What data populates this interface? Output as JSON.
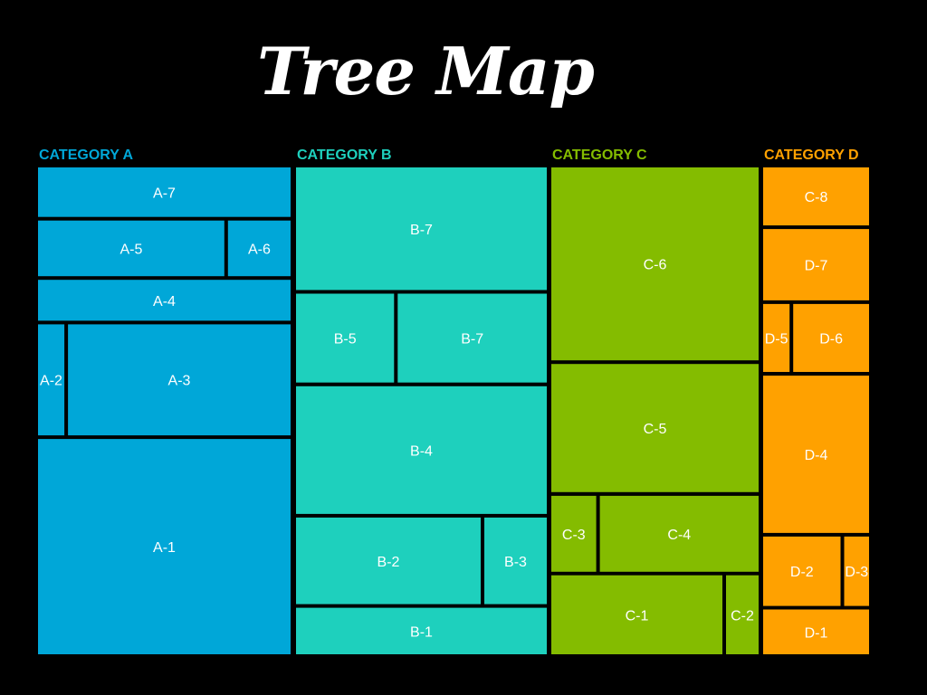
{
  "chart_data": {
    "type": "treemap",
    "title": "Tree Map",
    "categories": [
      {
        "name": "CATEGORY A",
        "color": "#00a7d8",
        "items": [
          {
            "label": "A-7",
            "value": 55.2
          },
          {
            "label": "A-5",
            "value": 46.4
          },
          {
            "label": "A-6",
            "value": 15.6
          },
          {
            "label": "A-4",
            "value": 45.6
          },
          {
            "label": "A-2",
            "value": 13.1
          },
          {
            "label": "A-3",
            "value": 110.7
          },
          {
            "label": "A-1",
            "value": 240.0
          }
        ]
      },
      {
        "name": "CATEGORY B",
        "color": "#1ed0bd",
        "items": [
          {
            "label": "B-7",
            "value": 147.8
          },
          {
            "label": "B-5",
            "value": 42.5
          },
          {
            "label": "B-7",
            "value": 64.6
          },
          {
            "label": "B-4",
            "value": 153.9
          },
          {
            "label": "B-2",
            "value": 78.0
          },
          {
            "label": "B-3",
            "value": 26.4
          },
          {
            "label": "B-1",
            "value": 56.0
          }
        ]
      },
      {
        "name": "CATEGORY C",
        "color": "#84bc00",
        "items": [
          {
            "label": "C-6",
            "value": 224.8
          },
          {
            "label": "C-5",
            "value": 149.3
          },
          {
            "label": "C-3",
            "value": 19.5
          },
          {
            "label": "C-4",
            "value": 68.9
          },
          {
            "label": "C-1",
            "value": 77.3
          },
          {
            "label": "C-2",
            "value": 14.7
          }
        ]
      },
      {
        "name": "CATEGORY D",
        "color": "#ffa100",
        "items": [
          {
            "label": "C-8",
            "value": 42.0
          },
          {
            "label": "D-7",
            "value": 51.6
          },
          {
            "label": "D-5",
            "value": 12.7
          },
          {
            "label": "D-6",
            "value": 36.5
          },
          {
            "label": "D-4",
            "value": 113.8
          },
          {
            "label": "D-2",
            "value": 38.0
          },
          {
            "label": "D-3",
            "value": 12.2
          },
          {
            "label": "D-1",
            "value": 32.4
          }
        ]
      }
    ]
  }
}
